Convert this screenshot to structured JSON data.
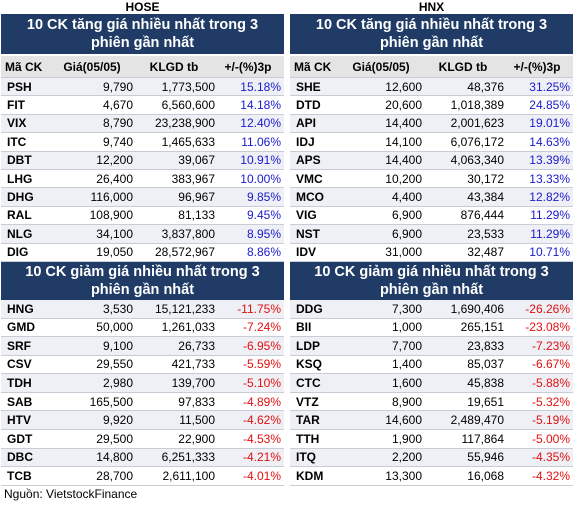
{
  "columns": [
    {
      "exchange": "HOSE",
      "gainers": {
        "title": "10 CK tăng giá nhiều nhất trong 3 phiên gần nhất",
        "header": [
          "Mã CK",
          "Giá(05/05)",
          "KLGD tb",
          "+/-(%)3p"
        ],
        "rows": [
          [
            "PSH",
            "9,790",
            "1,773,500",
            "15.18%"
          ],
          [
            "FIT",
            "4,670",
            "6,560,600",
            "14.18%"
          ],
          [
            "VIX",
            "8,790",
            "23,238,900",
            "12.40%"
          ],
          [
            "ITC",
            "9,740",
            "1,465,633",
            "11.06%"
          ],
          [
            "DBT",
            "12,200",
            "39,067",
            "10.91%"
          ],
          [
            "LHG",
            "26,400",
            "383,967",
            "10.00%"
          ],
          [
            "DHG",
            "116,000",
            "96,967",
            "9.85%"
          ],
          [
            "RAL",
            "108,900",
            "81,133",
            "9.45%"
          ],
          [
            "NLG",
            "34,100",
            "3,837,800",
            "8.95%"
          ],
          [
            "DIG",
            "19,050",
            "28,572,967",
            "8.86%"
          ]
        ]
      },
      "losers": {
        "title": "10 CK giảm giá nhiều nhất trong 3 phiên gần nhất",
        "rows": [
          [
            "HNG",
            "3,530",
            "15,121,233",
            "-11.75%"
          ],
          [
            "GMD",
            "50,000",
            "1,261,033",
            "-7.24%"
          ],
          [
            "SRF",
            "9,100",
            "26,733",
            "-6.95%"
          ],
          [
            "CSV",
            "29,550",
            "421,733",
            "-5.59%"
          ],
          [
            "TDH",
            "2,980",
            "139,700",
            "-5.10%"
          ],
          [
            "SAB",
            "165,500",
            "97,833",
            "-4.89%"
          ],
          [
            "HTV",
            "9,920",
            "11,500",
            "-4.62%"
          ],
          [
            "GDT",
            "29,500",
            "22,900",
            "-4.53%"
          ],
          [
            "DBC",
            "14,800",
            "6,251,333",
            "-4.21%"
          ],
          [
            "TCB",
            "28,700",
            "2,611,100",
            "-4.01%"
          ]
        ]
      }
    },
    {
      "exchange": "HNX",
      "gainers": {
        "title": "10 CK tăng giá nhiều nhất trong 3 phiên gần nhất",
        "header": [
          "Mã CK",
          "Giá(05/05)",
          "KLGD tb",
          "+/-(%)3p"
        ],
        "rows": [
          [
            "SHE",
            "12,600",
            "48,376",
            "31.25%"
          ],
          [
            "DTD",
            "20,600",
            "1,018,389",
            "24.85%"
          ],
          [
            "API",
            "14,400",
            "2,001,623",
            "19.01%"
          ],
          [
            "IDJ",
            "14,100",
            "6,076,172",
            "14.63%"
          ],
          [
            "APS",
            "14,400",
            "4,063,340",
            "13.39%"
          ],
          [
            "VMC",
            "10,200",
            "30,172",
            "13.33%"
          ],
          [
            "MCO",
            "4,400",
            "43,384",
            "12.82%"
          ],
          [
            "VIG",
            "6,900",
            "876,444",
            "11.29%"
          ],
          [
            "NST",
            "6,900",
            "23,533",
            "11.29%"
          ],
          [
            "IDV",
            "31,000",
            "32,487",
            "10.71%"
          ]
        ]
      },
      "losers": {
        "title": "10 CK giảm giá nhiều nhất trong 3 phiên gần nhất",
        "rows": [
          [
            "DDG",
            "7,300",
            "1,690,406",
            "-26.26%"
          ],
          [
            "BII",
            "1,000",
            "265,151",
            "-23.08%"
          ],
          [
            "LDP",
            "7,700",
            "23,833",
            "-7.23%"
          ],
          [
            "KSQ",
            "1,400",
            "85,037",
            "-6.67%"
          ],
          [
            "CTC",
            "1,600",
            "45,838",
            "-5.88%"
          ],
          [
            "VTZ",
            "8,900",
            "19,651",
            "-5.32%"
          ],
          [
            "TAR",
            "14,600",
            "2,489,470",
            "-5.19%"
          ],
          [
            "TTH",
            "1,900",
            "117,864",
            "-5.00%"
          ],
          [
            "ITQ",
            "2,200",
            "55,946",
            "-4.35%"
          ],
          [
            "KDM",
            "13,300",
            "16,068",
            "-4.32%"
          ]
        ]
      }
    }
  ],
  "source": "Nguồn: VietstockFinance"
}
